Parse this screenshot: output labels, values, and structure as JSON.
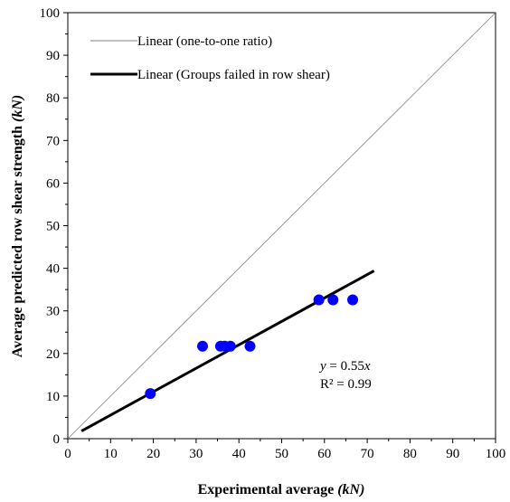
{
  "chart_data": {
    "type": "scatter",
    "xlabel": "Experimental average",
    "xlabel_unit": "(kN)",
    "ylabel": "Average predicted row shear strength",
    "ylabel_unit": "(kN)",
    "xlim": [
      0,
      100
    ],
    "ylim": [
      0,
      100
    ],
    "xticks": [
      0,
      10,
      20,
      30,
      40,
      50,
      60,
      70,
      80,
      90,
      100
    ],
    "yticks": [
      0,
      10,
      20,
      30,
      40,
      50,
      60,
      70,
      80,
      90,
      100
    ],
    "grid": false,
    "legend_position": "top-left",
    "series": [
      {
        "kind": "points",
        "color": "#0000ff",
        "points": [
          {
            "x": 19.3,
            "y": 10.6
          },
          {
            "x": 31.5,
            "y": 21.7
          },
          {
            "x": 35.7,
            "y": 21.7
          },
          {
            "x": 36.7,
            "y": 21.7
          },
          {
            "x": 38.0,
            "y": 21.7
          },
          {
            "x": 42.6,
            "y": 21.7
          },
          {
            "x": 58.7,
            "y": 32.6
          },
          {
            "x": 62.0,
            "y": 32.6
          },
          {
            "x": 66.6,
            "y": 32.6
          }
        ]
      },
      {
        "name": "Linear (one-to-one ratio)",
        "kind": "line",
        "color": "#808080",
        "width": "thin",
        "x": [
          0,
          100
        ],
        "y": [
          0,
          100
        ]
      },
      {
        "name": "Linear (Groups failed in row shear)",
        "kind": "line",
        "color": "#000000",
        "width": "thick",
        "x": [
          3.2,
          71.6
        ],
        "y": [
          1.8,
          39.4
        ]
      }
    ],
    "annotations": {
      "equation_prefix": "y",
      "equation_value": " = 0.55",
      "equation_var": "x",
      "r2_label": "R² = 0.99"
    }
  }
}
